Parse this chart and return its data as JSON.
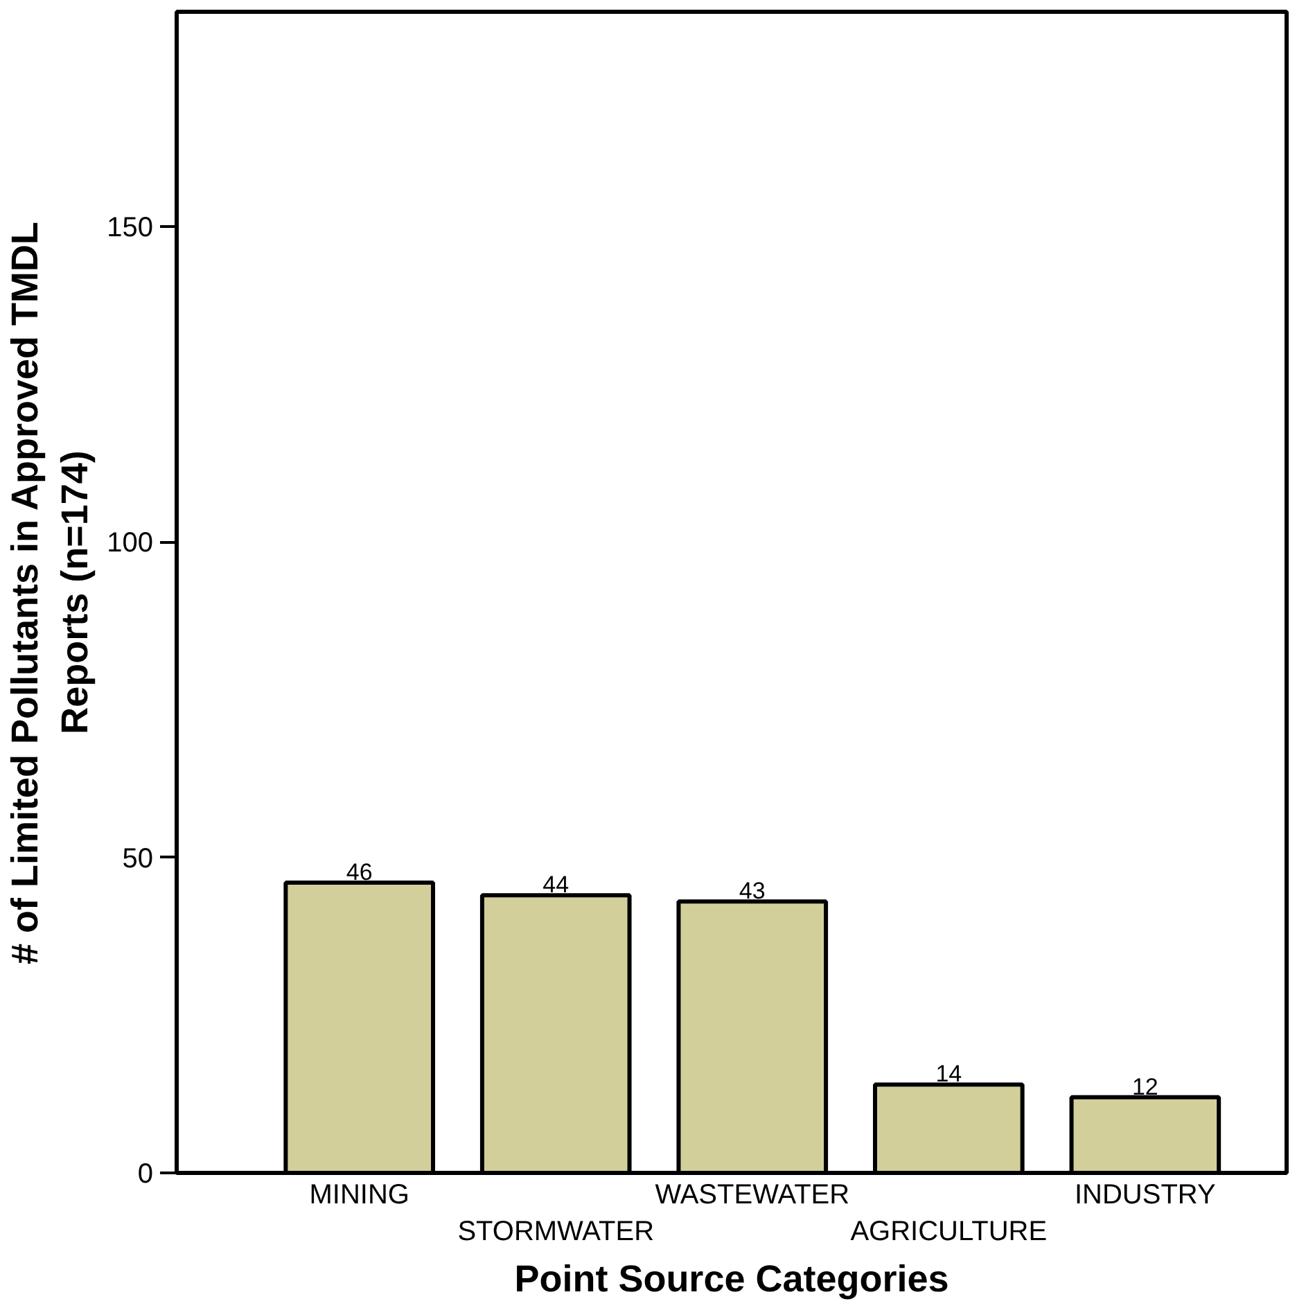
{
  "chart_data": {
    "type": "bar",
    "xlabel": "Point Source Categories",
    "ylabel": "# of Limited Pollutants in Approved TMDL\nReports (n=174)",
    "categories": [
      "MINING",
      "STORMWATER",
      "WASTEWATER",
      "AGRICULTURE",
      "INDUSTRY"
    ],
    "values": [
      46,
      44,
      43,
      14,
      12
    ],
    "color": "#d3cf9a",
    "ylim": [
      0,
      184
    ],
    "yticks": [
      0,
      50,
      100,
      150
    ],
    "data_labels": true,
    "grid": false
  }
}
